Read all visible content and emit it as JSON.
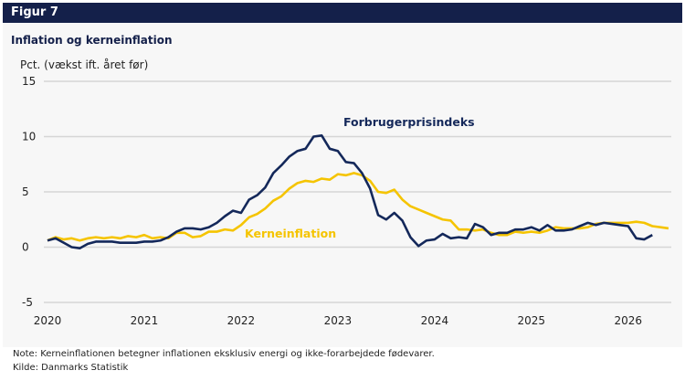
{
  "header": {
    "figure_label": "Figur 7"
  },
  "chart_data": {
    "type": "line",
    "title": "Inflation og kerneinflation",
    "ylabel": "Pct. (vækst ift. året før)",
    "xlabel": "",
    "ylim": [
      -5,
      15
    ],
    "yticks": [
      15,
      10,
      5,
      0,
      -5
    ],
    "xticks": [
      "2020",
      "2021",
      "2022",
      "2023",
      "2024",
      "2025",
      "2026"
    ],
    "grid": true,
    "x_start": "2020-01",
    "frequency": "monthly",
    "series": [
      {
        "name": "Forbrugerprisindeks",
        "color": "#14285a",
        "values": [
          0.6,
          0.8,
          0.4,
          0.0,
          -0.1,
          0.3,
          0.5,
          0.5,
          0.5,
          0.4,
          0.4,
          0.4,
          0.5,
          0.5,
          0.6,
          0.9,
          1.4,
          1.7,
          1.7,
          1.6,
          1.8,
          2.2,
          2.8,
          3.3,
          3.1,
          4.3,
          4.7,
          5.4,
          6.7,
          7.4,
          8.2,
          8.7,
          8.9,
          10.0,
          10.1,
          8.9,
          8.7,
          7.7,
          7.6,
          6.7,
          5.3,
          2.9,
          2.5,
          3.1,
          2.4,
          0.9,
          0.1,
          0.6,
          0.7,
          1.2,
          0.8,
          0.9,
          0.8,
          2.1,
          1.8,
          1.1,
          1.3,
          1.3,
          1.6,
          1.6,
          1.8,
          1.5,
          2.0,
          1.5,
          1.5,
          1.6,
          1.9,
          2.2,
          2.0,
          2.2,
          2.1,
          2.0,
          1.9,
          0.8,
          0.7,
          1.1
        ]
      },
      {
        "name": "Kerneinflation",
        "color": "#f5c400",
        "values": [
          0.6,
          0.9,
          0.7,
          0.8,
          0.6,
          0.8,
          0.9,
          0.8,
          0.9,
          0.8,
          1.0,
          0.9,
          1.1,
          0.8,
          0.9,
          0.8,
          1.3,
          1.3,
          0.9,
          1.0,
          1.4,
          1.4,
          1.6,
          1.5,
          2.0,
          2.7,
          3.0,
          3.5,
          4.2,
          4.6,
          5.3,
          5.8,
          6.0,
          5.9,
          6.2,
          6.1,
          6.6,
          6.5,
          6.7,
          6.5,
          6.0,
          5.0,
          4.9,
          5.2,
          4.3,
          3.7,
          3.4,
          3.1,
          2.8,
          2.5,
          2.4,
          1.6,
          1.6,
          1.5,
          1.6,
          1.3,
          1.1,
          1.1,
          1.4,
          1.3,
          1.4,
          1.3,
          1.5,
          1.8,
          1.7,
          1.7,
          1.7,
          1.8,
          2.1,
          2.2,
          2.2,
          2.2,
          2.2,
          2.3,
          2.2,
          1.9,
          1.8,
          1.7
        ]
      }
    ]
  },
  "footer": {
    "note": "Note:  Kerneinflationen betegner inflationen eksklusiv energi og ikke-forarbejdede fødevarer.",
    "source": "Kilde:  Danmarks Statistik"
  }
}
